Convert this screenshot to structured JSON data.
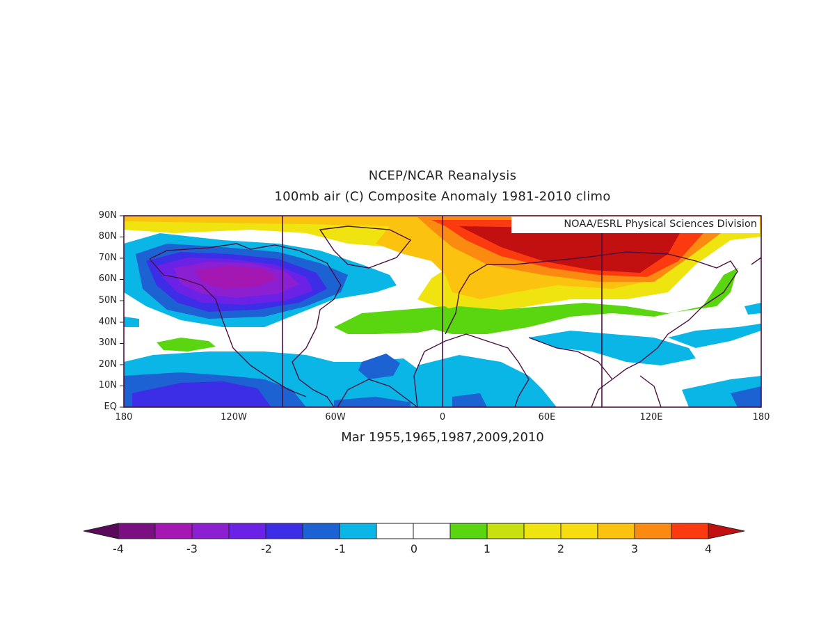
{
  "title_line1": "NCEP/NCAR Reanalysis",
  "title_line2": "100mb air (C) Composite Anomaly 1981-2010 climo",
  "credit": "NOAA/ESRL Physical Sciences Division",
  "subtitle": "Mar 1955,1965,1987,2009,2010",
  "lat_labels": [
    "90N",
    "80N",
    "70N",
    "60N",
    "50N",
    "40N",
    "30N",
    "20N",
    "10N",
    "EQ"
  ],
  "lon_labels": [
    "180",
    "120W",
    "60W",
    "0",
    "60E",
    "120E",
    "180"
  ],
  "colorbar": {
    "tick_labels": [
      "-4",
      "-3",
      "-2",
      "-1",
      "0",
      "1",
      "2",
      "3",
      "4"
    ],
    "colors": [
      "#5a0a5a",
      "#7a0f82",
      "#a517b3",
      "#8d1fd2",
      "#6b22e6",
      "#3c2ee6",
      "#1c62d2",
      "#0ab6e6",
      "#ffffff",
      "#ffffff",
      "#5ad610",
      "#c6e010",
      "#f0e410",
      "#f7dc10",
      "#fbc210",
      "#fb8a10",
      "#fb3a10",
      "#c21010"
    ]
  },
  "colors": {
    "land_outline": "#4a0f3f",
    "frame": "#4a0f3f"
  }
}
